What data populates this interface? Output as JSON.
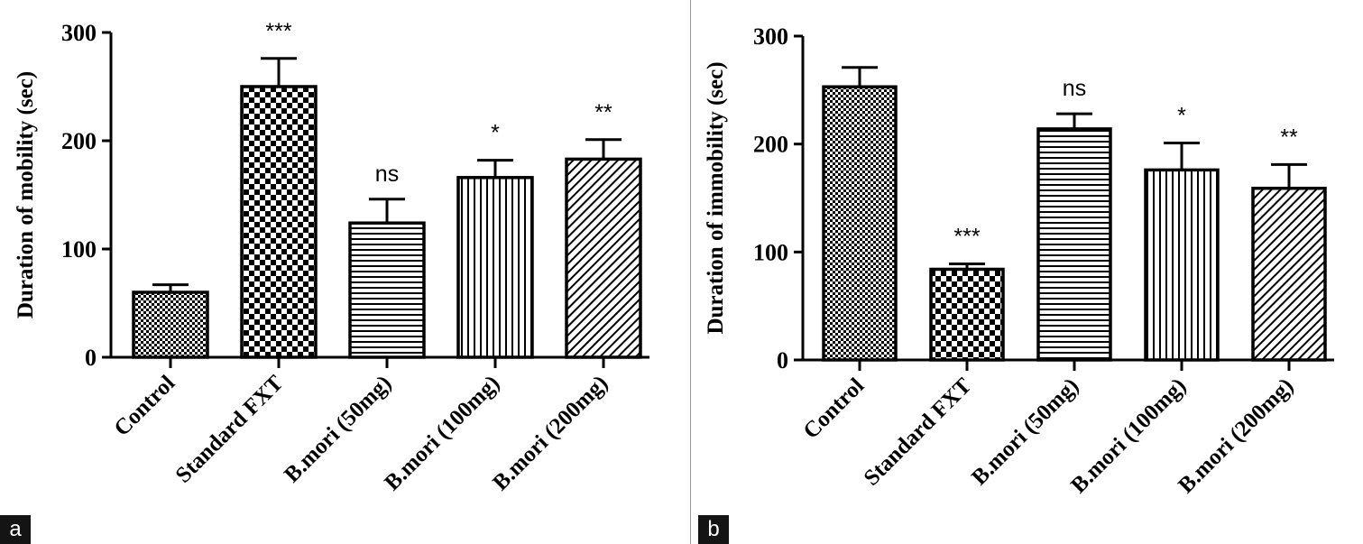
{
  "chart_data": [
    {
      "panel_label": "a",
      "type": "bar",
      "title": "",
      "xlabel": "",
      "ylabel": "Duration of mobility (sec)",
      "ylim": [
        0,
        300
      ],
      "yticks": [
        "0",
        "100",
        "200",
        "300"
      ],
      "categories": [
        "Control",
        "Standard FXT",
        "B.mori (50mg)",
        "B.mori (100mg)",
        "B.mori (200mg)"
      ],
      "values": [
        60,
        250,
        124,
        166,
        183
      ],
      "errors": [
        7,
        26,
        22,
        16,
        18
      ],
      "significance": [
        "",
        "***",
        "ns",
        "*",
        "**"
      ],
      "patterns": [
        "fine-check",
        "coarse-check",
        "horizontal-lines",
        "vertical-lines",
        "diagonal-lines"
      ],
      "grid": false
    },
    {
      "panel_label": "b",
      "type": "bar",
      "title": "",
      "xlabel": "",
      "ylabel": "Duration of immobility (sec)",
      "ylim": [
        0,
        300
      ],
      "yticks": [
        "0",
        "100",
        "200",
        "300"
      ],
      "categories": [
        "Control",
        "Standard FXT",
        "B.mori (50mg)",
        "B.mori (100mg)",
        "B.mori (200mg)"
      ],
      "values": [
        253,
        84,
        214,
        176,
        159
      ],
      "errors": [
        18,
        5,
        14,
        25,
        22
      ],
      "significance": [
        "",
        "***",
        "ns",
        "*",
        "**"
      ],
      "patterns": [
        "fine-check",
        "coarse-check",
        "horizontal-lines",
        "vertical-lines",
        "diagonal-lines"
      ],
      "grid": false
    }
  ],
  "colors": {
    "bar_stroke": "#000000",
    "pattern_ink": "#000000",
    "label_box": "#141414",
    "label_text": "#ffffff"
  }
}
